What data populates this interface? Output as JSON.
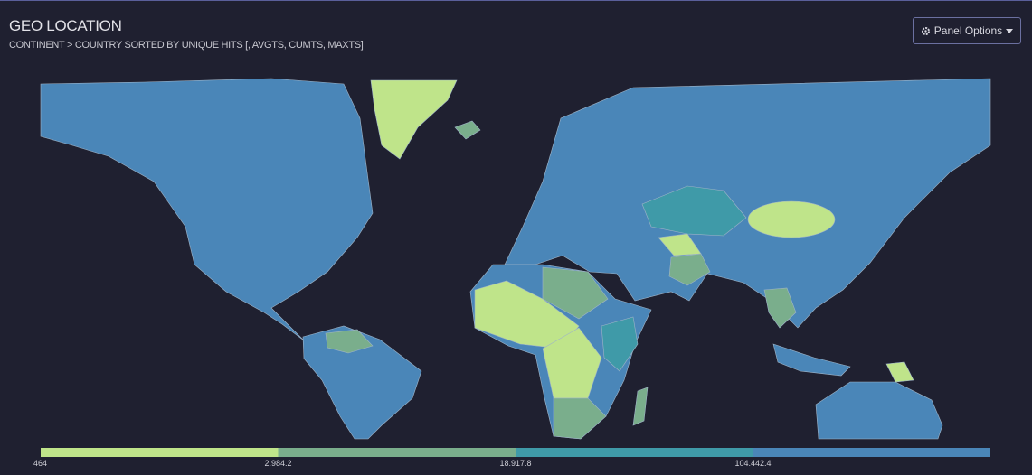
{
  "header": {
    "title": "GEO LOCATION",
    "subtitle": "CONTINENT > COUNTRY SORTED BY UNIQUE HITS [, AVGTS, CUMTS, MAXTS]",
    "button": "Panel Options"
  },
  "legend": {
    "bins": [
      {
        "label": "464",
        "color": "#bfe48a"
      },
      {
        "label": "2.984.2",
        "color": "#7aae8c"
      },
      {
        "label": "18.917.8",
        "color": "#3f9aa8"
      },
      {
        "label": "104.442.4",
        "color": "#4a86b8"
      }
    ]
  }
}
